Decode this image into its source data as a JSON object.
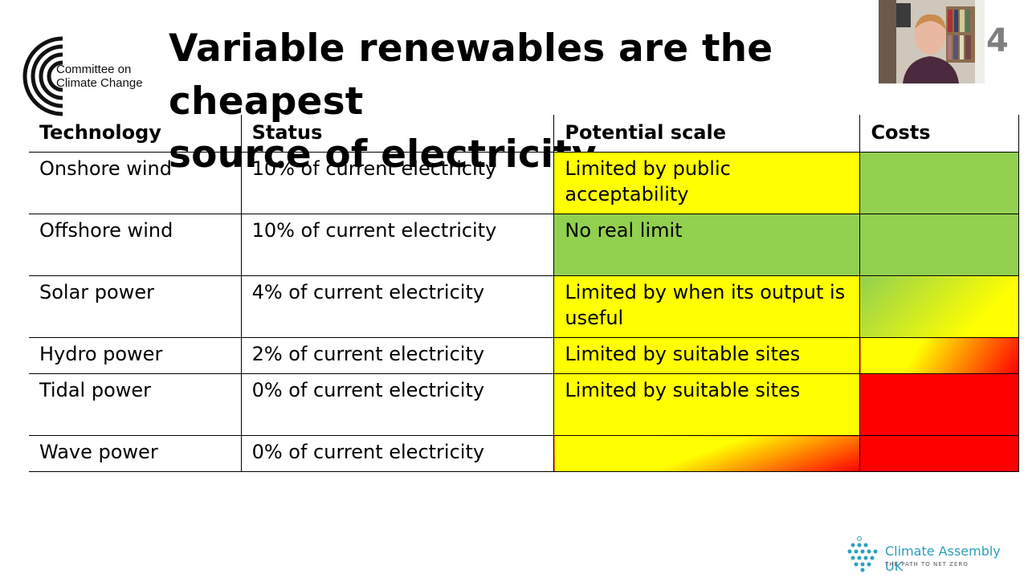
{
  "header": {
    "logo_text": "Committee on Climate Change",
    "title_line1": "Variable renewables are the cheapest",
    "title_line2": "source of electricity",
    "slide_number": "4"
  },
  "table": {
    "headers": [
      "Technology",
      "Status",
      "Potential scale",
      "Costs"
    ],
    "rows": [
      {
        "technology": "Onshore wind",
        "status": "10% of current electricity",
        "scale": "Limited by public acceptability",
        "scale_color": "#ffff00",
        "cost_color": "#92d050"
      },
      {
        "technology": "Offshore wind",
        "status": "10% of current electricity",
        "scale": "No real limit",
        "scale_color": "#92d050",
        "cost_color": "#92d050"
      },
      {
        "technology": "Solar power",
        "status": "4% of current electricity",
        "scale": "Limited by when its output is useful",
        "scale_color": "#ffff00",
        "cost_color": "linear-gradient(135deg, #92d050 0%, #ffff00 75%)"
      },
      {
        "technology": "Hydro power",
        "status": "2% of current electricity",
        "scale": "Limited by suitable sites",
        "scale_color": "#ffff00",
        "cost_color": "linear-gradient(120deg, #ffff00 0%, #ffff00 35%, #ff0000 100%)"
      },
      {
        "technology": "Tidal power",
        "status": "0% of current electricity",
        "scale": "Limited by suitable sites",
        "scale_color": "#ffff00",
        "cost_color": "#ff0000"
      },
      {
        "technology": "Wave power",
        "status": "0% of current electricity",
        "scale": "",
        "scale_color": "linear-gradient(160deg, #ffff00 0%, #ffff00 48%, #ff0000 100%)",
        "cost_color": "#ff0000"
      }
    ]
  },
  "footer": {
    "org_name": "Climate Assembly UK",
    "tagline": "THE PATH TO NET ZERO"
  },
  "colors": {
    "green": "#92d050",
    "yellow": "#ffff00",
    "red": "#ff0000",
    "brand_teal": "#2a9fbf"
  },
  "icons": {
    "ccc_logo": "concentric-arcs-logo",
    "cau_logo": "dot-cluster-logo",
    "webcam": "presenter-video-thumbnail"
  }
}
